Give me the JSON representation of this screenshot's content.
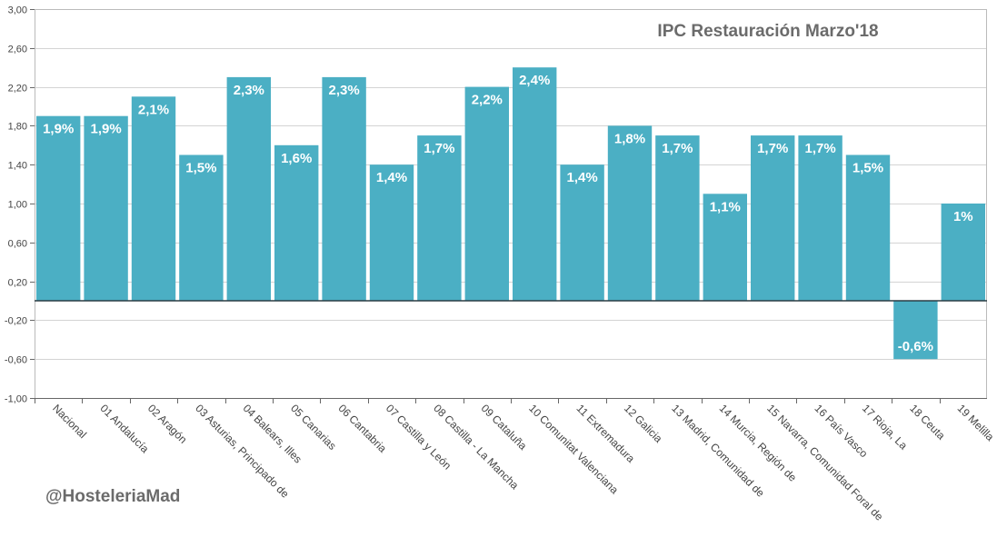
{
  "watermark": "@HosteleriaMad",
  "colors": {
    "bar": "#4bafc4",
    "grid": "#d4d4d4",
    "axis": "#666666",
    "zero_line": "#2b3d44"
  },
  "chart_data": {
    "type": "bar",
    "title": "IPC Restauración Marzo'18",
    "xlabel": "",
    "ylabel": "",
    "ylim": [
      -1.0,
      3.0
    ],
    "yticks": [
      "-1,00",
      "-0,60",
      "-0,20",
      "0,20",
      "0,60",
      "1,00",
      "1,40",
      "1,80",
      "2,20",
      "2,60",
      "3,00"
    ],
    "grid": true,
    "legend": false,
    "categories": [
      "Nacional",
      "01 Andalucía",
      "02 Aragón",
      "03 Asturias, Principado de",
      "04 Balears, Illes",
      "05 Canarias",
      "06 Cantabria",
      "07 Castilla y León",
      "08 Castilla - La Mancha",
      "09 Cataluña",
      "10 Comunitat Valenciana",
      "11 Extremadura",
      "12 Galicia",
      "13 Madrid, Comunidad de",
      "14 Murcia, Región de",
      "15 Navarra, Comunidad Foral de",
      "16 País Vasco",
      "17 Rioja, La",
      "18 Ceuta",
      "19 Melilla"
    ],
    "values": [
      1.9,
      1.9,
      2.1,
      1.5,
      2.3,
      1.6,
      2.3,
      1.4,
      1.7,
      2.2,
      2.4,
      1.4,
      1.8,
      1.7,
      1.1,
      1.7,
      1.7,
      1.5,
      -0.6,
      1.0
    ],
    "data_labels": [
      "1,9%",
      "1,9%",
      "2,1%",
      "1,5%",
      "2,3%",
      "1,6%",
      "2,3%",
      "1,4%",
      "1,7%",
      "2,2%",
      "2,4%",
      "1,4%",
      "1,8%",
      "1,7%",
      "1,1%",
      "1,7%",
      "1,7%",
      "1,5%",
      "-0,6%",
      "1%"
    ]
  }
}
